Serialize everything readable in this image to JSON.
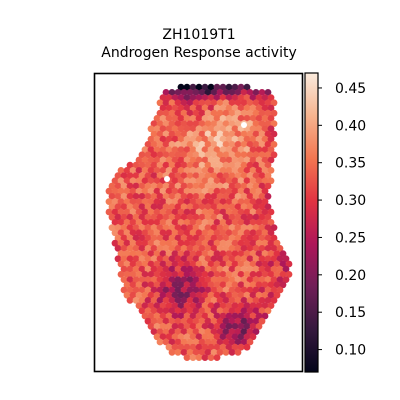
{
  "chart_data": {
    "type": "heatmap",
    "title_lines": [
      "ZH1019T1",
      "Androgen Response activity"
    ],
    "xlabel": "",
    "ylabel": "",
    "colormap": "rocket",
    "color_range": [
      0.07,
      0.47
    ],
    "colorbar_ticks": [
      0.1,
      0.15,
      0.2,
      0.25,
      0.3,
      0.35,
      0.4,
      0.45
    ],
    "colorbar_tick_labels": [
      "0.10",
      "0.15",
      "0.20",
      "0.25",
      "0.30",
      "0.35",
      "0.40",
      "0.45"
    ],
    "colorbar_stops": [
      "#03051a",
      "#35193e",
      "#701f57",
      "#ae1759",
      "#e13342",
      "#f37651",
      "#f6b48f",
      "#faebdd"
    ],
    "spot_layout": "hexagonal",
    "spatial_trend": [
      {
        "region": "top edge",
        "activity": "low",
        "approx_value": 0.15
      },
      {
        "region": "upper middle",
        "activity": "high",
        "approx_value": 0.4
      },
      {
        "region": "left and center",
        "activity": "medium-high",
        "approx_value": 0.34
      },
      {
        "region": "right side",
        "activity": "medium",
        "approx_value": 0.28
      },
      {
        "region": "bottom center",
        "activity": "low",
        "approx_value": 0.17
      }
    ]
  }
}
